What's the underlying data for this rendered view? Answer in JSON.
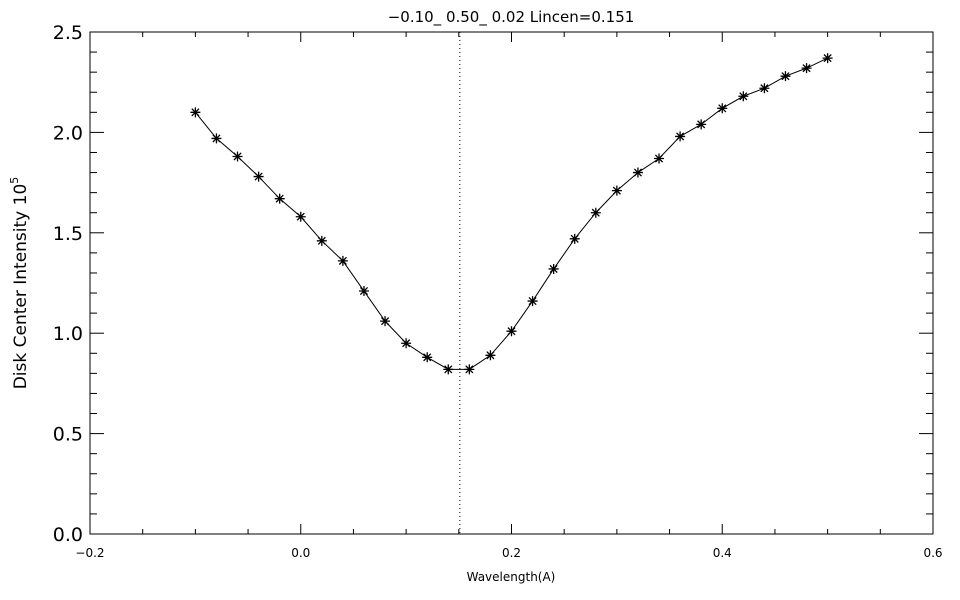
{
  "chart_data": {
    "type": "line",
    "title": "−0.10_ 0.50_ 0.02   Lincen=0.151",
    "xlabel": "Wavelength(A)",
    "ylabel": "Disk Center Intensity",
    "ylabel_power": "10",
    "ylabel_exponent": "5",
    "xlim": [
      -0.2,
      0.6
    ],
    "ylim": [
      0.0,
      2.5
    ],
    "x_ticks": [
      -0.2,
      0.0,
      0.2,
      0.4,
      0.6
    ],
    "x_tick_labels": [
      "−0.2",
      "0.0",
      "0.2",
      "0.4",
      "0.6"
    ],
    "y_ticks": [
      0.0,
      0.5,
      1.0,
      1.5,
      2.0,
      2.5
    ],
    "y_tick_labels": [
      "0.0",
      "0.5",
      "1.0",
      "1.5",
      "2.0",
      "2.5"
    ],
    "vertical_line_x": 0.151,
    "marker": "asterisk",
    "grid": false,
    "series": [
      {
        "x": [
          -0.1,
          -0.08,
          -0.06,
          -0.04,
          -0.02,
          0.0,
          0.02,
          0.04,
          0.06,
          0.08,
          0.1,
          0.12,
          0.14,
          0.16,
          0.18,
          0.2,
          0.22,
          0.24,
          0.26,
          0.28,
          0.3,
          0.32,
          0.34,
          0.36,
          0.38,
          0.4,
          0.42,
          0.44,
          0.46,
          0.48,
          0.5
        ],
        "y": [
          2.1,
          1.97,
          1.88,
          1.78,
          1.67,
          1.58,
          1.46,
          1.36,
          1.21,
          1.06,
          0.95,
          0.88,
          0.82,
          0.82,
          0.89,
          1.01,
          1.16,
          1.32,
          1.47,
          1.6,
          1.71,
          1.8,
          1.87,
          1.98,
          2.04,
          2.12,
          2.18,
          2.22,
          2.28,
          2.32,
          2.37
        ]
      }
    ]
  }
}
